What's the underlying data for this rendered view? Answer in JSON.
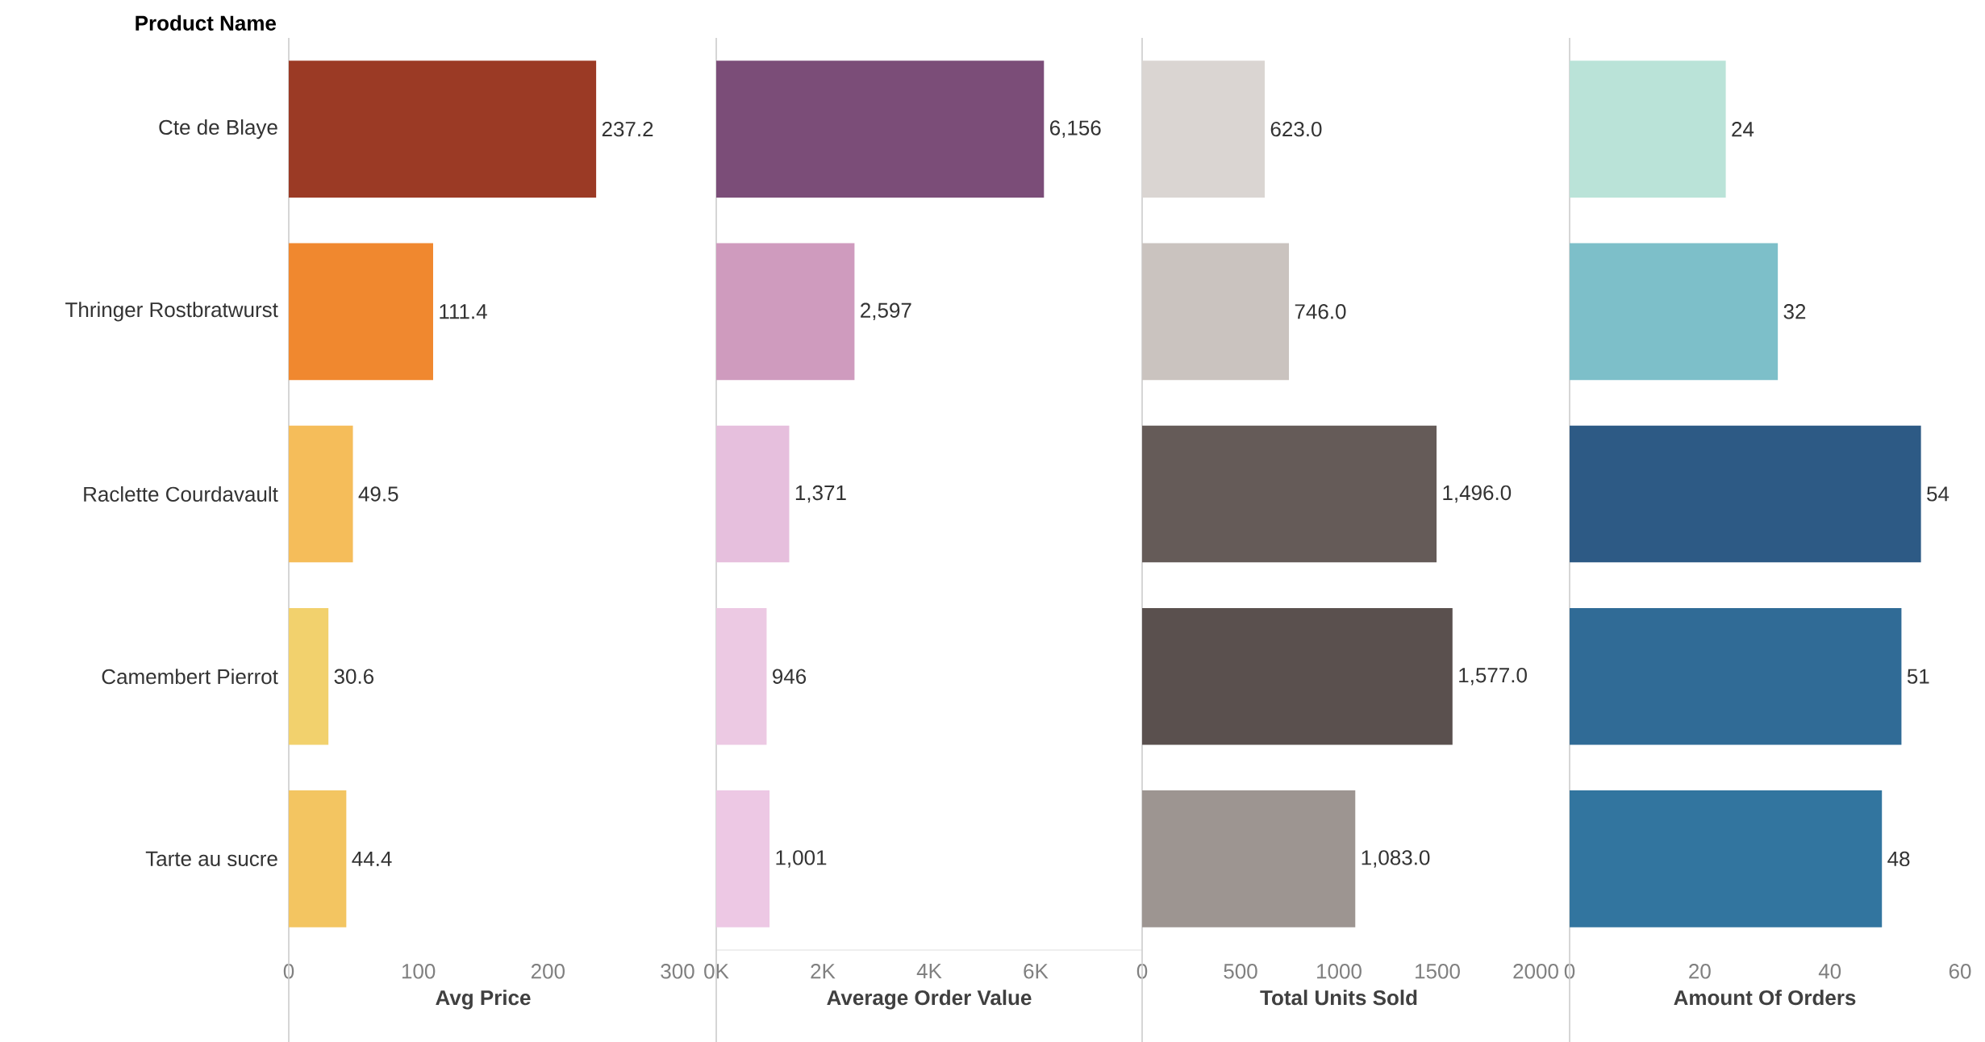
{
  "chart_data": [
    {
      "type": "bar",
      "orientation": "horizontal",
      "ylabel": "Product Name",
      "xlabel": "Avg Price",
      "categories": [
        "Cte de Blaye",
        "Thringer Rostbratwurst",
        "Raclette Courdavault",
        "Camembert Pierrot",
        "Tarte au sucre"
      ],
      "values": [
        237.2,
        111.4,
        49.5,
        30.6,
        44.4
      ],
      "value_labels": [
        "237.2",
        "111.4",
        "49.5",
        "30.6",
        "44.4"
      ],
      "colors": [
        "#9b3a25",
        "#f0882f",
        "#f5bd5a",
        "#f2d16d",
        "#f3c561"
      ],
      "xlim": [
        0,
        300
      ],
      "xticks": [
        0,
        100,
        200,
        300
      ]
    },
    {
      "type": "bar",
      "orientation": "horizontal",
      "xlabel": "Average Order Value",
      "tick_labels": "x",
      "categories": [
        null,
        null,
        null,
        null,
        null
      ],
      "values": [
        6156,
        2597,
        1371,
        946,
        1001
      ],
      "value_labels": [
        "6,156",
        "2,597",
        "1,371",
        "946",
        "1,001"
      ],
      "colors": [
        "#7b4d78",
        "#cf9bbe",
        "#e6bfdd",
        "#ecc9e3",
        "#edc8e4"
      ],
      "xlim": [
        0,
        8000
      ],
      "xticks": [
        {
          "value": 0,
          "label": "0K"
        },
        {
          "value": 2000,
          "label": "2K"
        },
        {
          "value": 4000,
          "label": "4K"
        },
        {
          "value": 6000,
          "label": "6K"
        }
      ]
    },
    {
      "type": "bar",
      "orientation": "horizontal",
      "xlabel": "Total Units Sold",
      "tick_labels": "x",
      "categories": [
        null,
        null,
        null,
        null,
        null
      ],
      "values": [
        623,
        746,
        1496,
        1577,
        1083
      ],
      "value_labels": [
        "623.0",
        "746.0",
        "1,496.0",
        "1,577.0",
        "1,083.0"
      ],
      "colors": [
        "#dad5d2",
        "#cac3bf",
        "#655b58",
        "#5a504e",
        "#9d9591"
      ],
      "xlim": [
        0,
        2000
      ],
      "xticks": [
        0,
        500,
        1000,
        1500,
        2000
      ]
    },
    {
      "type": "bar",
      "orientation": "horizontal",
      "xlabel": "Amount Of Orders",
      "tick_labels": "x",
      "categories": [
        null,
        null,
        null,
        null,
        null
      ],
      "values": [
        24,
        32,
        54,
        51,
        48
      ],
      "value_labels": [
        "24",
        "32",
        "54",
        "51",
        "48"
      ],
      "colors": [
        "#bae3d8",
        "#7dbfc9",
        "#2d5a85",
        "#306b96",
        "#32759f"
      ],
      "xlim": [
        0,
        60
      ],
      "xticks": [
        0,
        20,
        40,
        60
      ]
    }
  ]
}
